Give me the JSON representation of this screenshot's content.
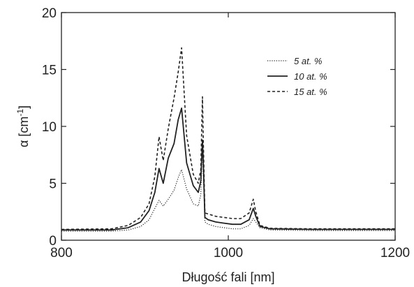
{
  "chart_data": {
    "type": "line",
    "xlabel": "Długość fali [nm]",
    "ylabel_main": "α [cm",
    "ylabel_sup": "-1",
    "ylabel_close": "]",
    "xlim": [
      800,
      1200
    ],
    "ylim": [
      0,
      20
    ],
    "x_ticks": [
      800,
      1000,
      1200
    ],
    "y_ticks": [
      0,
      5,
      10,
      15,
      20
    ],
    "grid": false,
    "legend_position": "top-right",
    "series": [
      {
        "name": "5 at. %",
        "line_style": "dotted",
        "x": [
          800,
          860,
          880,
          895,
          905,
          912,
          917,
          922,
          928,
          935,
          940,
          944,
          950,
          958,
          964,
          967,
          969,
          970,
          972,
          976,
          985,
          995,
          1005,
          1015,
          1025,
          1030,
          1033,
          1038,
          1050,
          1100,
          1200
        ],
        "y": [
          0.8,
          0.8,
          0.9,
          1.2,
          1.8,
          2.8,
          3.5,
          3.0,
          3.6,
          4.4,
          5.5,
          6.2,
          4.5,
          3.2,
          3.0,
          4.0,
          8.8,
          6.0,
          1.6,
          1.4,
          1.2,
          1.1,
          1.0,
          1.0,
          1.3,
          1.9,
          1.6,
          1.1,
          0.9,
          0.85,
          0.85
        ]
      },
      {
        "name": "10 at. %",
        "line_style": "solid",
        "x": [
          800,
          860,
          880,
          895,
          905,
          912,
          917,
          922,
          928,
          935,
          940,
          944,
          950,
          958,
          964,
          967,
          969,
          970,
          972,
          976,
          985,
          995,
          1005,
          1015,
          1025,
          1030,
          1033,
          1038,
          1050,
          1100,
          1200
        ],
        "y": [
          0.9,
          0.9,
          1.1,
          1.6,
          2.6,
          4.2,
          6.3,
          5.0,
          7.2,
          8.5,
          10.6,
          11.6,
          6.8,
          4.8,
          4.2,
          5.2,
          8.8,
          7.0,
          2.0,
          1.8,
          1.6,
          1.5,
          1.4,
          1.4,
          1.8,
          2.8,
          2.1,
          1.2,
          1.0,
          0.95,
          0.95
        ]
      },
      {
        "name": "15 at. %",
        "line_style": "dashed",
        "x": [
          800,
          860,
          880,
          895,
          905,
          912,
          917,
          922,
          928,
          935,
          940,
          944,
          950,
          958,
          964,
          967,
          969,
          970,
          972,
          976,
          985,
          995,
          1005,
          1015,
          1025,
          1030,
          1033,
          1038,
          1050,
          1100,
          1200
        ],
        "y": [
          0.95,
          1.0,
          1.3,
          2.0,
          3.2,
          5.6,
          9.1,
          7.0,
          9.8,
          12.5,
          14.8,
          16.9,
          9.2,
          5.8,
          5.0,
          6.2,
          12.6,
          9.0,
          2.4,
          2.3,
          2.1,
          2.0,
          1.9,
          1.9,
          2.4,
          3.6,
          2.5,
          1.3,
          1.05,
          1.0,
          1.0
        ]
      }
    ]
  }
}
